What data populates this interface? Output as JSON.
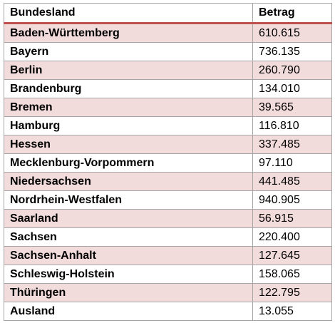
{
  "table": {
    "headers": {
      "state": "Bundesland",
      "amount": "Betrag"
    },
    "rows": [
      {
        "state": "Baden-Württemberg",
        "amount": "610.615"
      },
      {
        "state": "Bayern",
        "amount": "736.135"
      },
      {
        "state": "Berlin",
        "amount": "260.790"
      },
      {
        "state": "Brandenburg",
        "amount": "134.010"
      },
      {
        "state": "Bremen",
        "amount": "39.565"
      },
      {
        "state": "Hamburg",
        "amount": "116.810"
      },
      {
        "state": "Hessen",
        "amount": "337.485"
      },
      {
        "state": "Mecklenburg-Vorpommern",
        "amount": "97.110"
      },
      {
        "state": "Niedersachsen",
        "amount": "441.485"
      },
      {
        "state": "Nordrhein-Westfalen",
        "amount": "940.905"
      },
      {
        "state": "Saarland",
        "amount": "56.915"
      },
      {
        "state": "Sachsen",
        "amount": "220.400"
      },
      {
        "state": "Sachsen-Anhalt",
        "amount": "127.645"
      },
      {
        "state": "Schleswig-Holstein",
        "amount": "158.065"
      },
      {
        "state": "Thüringen",
        "amount": "122.795"
      },
      {
        "state": "Ausland",
        "amount": "13.055"
      }
    ]
  },
  "colors": {
    "header_rule": "#c0504d",
    "band": "#f2dbdb",
    "grid": "#a6a6a6"
  }
}
